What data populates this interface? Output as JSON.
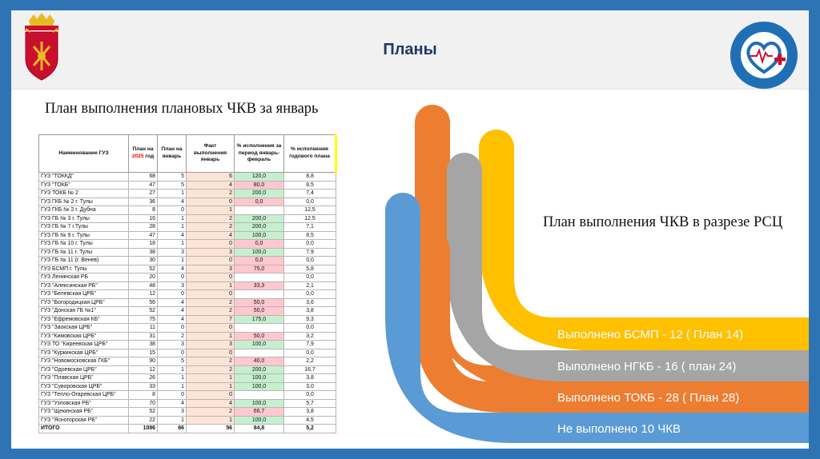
{
  "header": {
    "title": "Планы"
  },
  "left": {
    "title": "План выполнения плановых ЧКВ за январь",
    "table": {
      "headers": {
        "name": "Наименование ГУЗ",
        "plan_year_a": "План на",
        "plan_year_b": "2025",
        "plan_year_c": "год",
        "plan_jan": "План на январь",
        "fact_jan": "Факт выполнения январь",
        "pct_period": "% исполнения за период январь-февраль",
        "pct_year": "% исполнения годового плана"
      },
      "rows": [
        {
          "name": "ГУЗ \"ТОККД\"",
          "plan_year": "68",
          "plan_jan": "5",
          "fact": "6",
          "pct_period": "120,0",
          "pct_year": "8,8",
          "hl": "green"
        },
        {
          "name": "ГУЗ \"ТОКБ\"",
          "plan_year": "47",
          "plan_jan": "5",
          "fact": "4",
          "pct_period": "80,0",
          "pct_year": "8,5",
          "hl": "pink"
        },
        {
          "name": "ГУЗ ТОКБ № 2",
          "plan_year": "27",
          "plan_jan": "1",
          "fact": "2",
          "pct_period": "200,0",
          "pct_year": "7,4",
          "hl": "green"
        },
        {
          "name": "ГУЗ ГКБ № 2 г. Тулы",
          "plan_year": "36",
          "plan_jan": "4",
          "fact": "0",
          "pct_period": "0,0",
          "pct_year": "0,0",
          "hl": "pink"
        },
        {
          "name": "ГУЗ ГКБ № 2 г. Дубна",
          "plan_year": "8",
          "plan_jan": "0",
          "fact": "1",
          "pct_period": "",
          "pct_year": "12,5",
          "hl": ""
        },
        {
          "name": "ГУЗ ГБ № 3 г. Тулы",
          "plan_year": "16",
          "plan_jan": "1",
          "fact": "2",
          "pct_period": "200,0",
          "pct_year": "12,5",
          "hl": "green"
        },
        {
          "name": "ГУЗ ГБ № 7 г.Тулы",
          "plan_year": "28",
          "plan_jan": "1",
          "fact": "2",
          "pct_period": "200,0",
          "pct_year": "7,1",
          "hl": "green"
        },
        {
          "name": "ГУЗ ГБ № 9 г. Тулы",
          "plan_year": "47",
          "plan_jan": "4",
          "fact": "4",
          "pct_period": "100,0",
          "pct_year": "8,5",
          "hl": "green"
        },
        {
          "name": "ГУЗ ГБ № 10 г. Тулы",
          "plan_year": "18",
          "plan_jan": "1",
          "fact": "0",
          "pct_period": "0,0",
          "pct_year": "0,0",
          "hl": "pink"
        },
        {
          "name": "ГУЗ ГБ № 11 г. Тулы",
          "plan_year": "38",
          "plan_jan": "3",
          "fact": "3",
          "pct_period": "100,0",
          "pct_year": "7,9",
          "hl": "green"
        },
        {
          "name": "ГУЗ ГБ № 11 (г. Венев)",
          "plan_year": "30",
          "plan_jan": "1",
          "fact": "0",
          "pct_period": "0,0",
          "pct_year": "0,0",
          "hl": "pink"
        },
        {
          "name": "ГУЗ БСМП г. Тулы",
          "plan_year": "52",
          "plan_jan": "4",
          "fact": "3",
          "pct_period": "75,0",
          "pct_year": "5,8",
          "hl": "pink"
        },
        {
          "name": "ГУЗ Ленинская РБ",
          "plan_year": "20",
          "plan_jan": "0",
          "fact": "0",
          "pct_period": "",
          "pct_year": "0,0",
          "hl": ""
        },
        {
          "name": "ГУЗ \"Алексинская РБ\"",
          "plan_year": "48",
          "plan_jan": "3",
          "fact": "1",
          "pct_period": "33,3",
          "pct_year": "2,1",
          "hl": "pink"
        },
        {
          "name": "ГУЗ \"Белевская ЦРБ\"",
          "plan_year": "12",
          "plan_jan": "0",
          "fact": "0",
          "pct_period": "",
          "pct_year": "0,0",
          "hl": ""
        },
        {
          "name": "ГУЗ \"Богородицкая ЦРБ\"",
          "plan_year": "56",
          "plan_jan": "4",
          "fact": "2",
          "pct_period": "50,0",
          "pct_year": "3,6",
          "hl": "pink"
        },
        {
          "name": "ГУЗ \"Донская ГБ №1\"",
          "plan_year": "52",
          "plan_jan": "4",
          "fact": "2",
          "pct_period": "50,0",
          "pct_year": "3,8",
          "hl": "pink"
        },
        {
          "name": "ГУЗ \"Ефремовская КБ\"",
          "plan_year": "75",
          "plan_jan": "4",
          "fact": "7",
          "pct_period": "175,0",
          "pct_year": "9,3",
          "hl": "green"
        },
        {
          "name": "ГУЗ \"Заокская ЦРБ\"",
          "plan_year": "11",
          "plan_jan": "0",
          "fact": "0",
          "pct_period": "",
          "pct_year": "0,0",
          "hl": ""
        },
        {
          "name": "ГУЗ \"Кимовская ЦРБ\"",
          "plan_year": "31",
          "plan_jan": "2",
          "fact": "1",
          "pct_period": "50,0",
          "pct_year": "3,2",
          "hl": "pink"
        },
        {
          "name": "ГУЗ ТО \"Киреевская ЦРБ\"",
          "plan_year": "38",
          "plan_jan": "3",
          "fact": "3",
          "pct_period": "100,0",
          "pct_year": "7,9",
          "hl": "green"
        },
        {
          "name": "ГУЗ \"Куркинская ЦРБ\"",
          "plan_year": "15",
          "plan_jan": "0",
          "fact": "0",
          "pct_period": "",
          "pct_year": "0,0",
          "hl": ""
        },
        {
          "name": "ГУЗ \"Новомосковская ГКБ\"",
          "plan_year": "90",
          "plan_jan": "5",
          "fact": "2",
          "pct_period": "40,0",
          "pct_year": "2,2",
          "hl": "pink"
        },
        {
          "name": "ГУЗ \"Одоевская ЦРБ\"",
          "plan_year": "12",
          "plan_jan": "1",
          "fact": "2",
          "pct_period": "200,0",
          "pct_year": "16,7",
          "hl": "green"
        },
        {
          "name": "ГУЗ \"Плавская ЦРБ\"",
          "plan_year": "26",
          "plan_jan": "1",
          "fact": "1",
          "pct_period": "100,0",
          "pct_year": "3,8",
          "hl": "green"
        },
        {
          "name": "ГУЗ \"Суворовская ЦРБ\"",
          "plan_year": "33",
          "plan_jan": "1",
          "fact": "1",
          "pct_period": "100,0",
          "pct_year": "3,0",
          "hl": "green"
        },
        {
          "name": "ГУЗ \"Тепло-Огаревская ЦРБ\"",
          "plan_year": "8",
          "plan_jan": "0",
          "fact": "0",
          "pct_period": "",
          "pct_year": "0,0",
          "hl": ""
        },
        {
          "name": "ГУЗ \"Узловская РБ\"",
          "plan_year": "70",
          "plan_jan": "4",
          "fact": "4",
          "pct_period": "100,0",
          "pct_year": "5,7",
          "hl": "green"
        },
        {
          "name": "ГУЗ \"Щекинская РБ\"",
          "plan_year": "52",
          "plan_jan": "3",
          "fact": "2",
          "pct_period": "66,7",
          "pct_year": "3,8",
          "hl": "pink"
        },
        {
          "name": "ГУЗ \"Ясногорская РБ\"",
          "plan_year": "22",
          "plan_jan": "1",
          "fact": "1",
          "pct_period": "100,0",
          "pct_year": "4,5",
          "hl": "green"
        }
      ],
      "total": {
        "name": "ИТОГО",
        "plan_year": "1086",
        "plan_jan": "66",
        "fact": "56",
        "pct_period": "84,8",
        "pct_year": "5,2"
      }
    }
  },
  "right": {
    "title": "План выполнения ЧКВ в разрезе РСЦ",
    "bands": [
      {
        "label": "Выполнено БСМП - 12 ( План 14)",
        "color": "#ffc000"
      },
      {
        "label": "Выполнено НГКБ - 16 ( план 24)",
        "color": "#a5a5a5"
      },
      {
        "label": "Выполнено ТОКБ - 28 ( План 28)",
        "color": "#ed7d31"
      },
      {
        "label": "Не выполнено 10 ЧКВ",
        "color": "#5b9bd5"
      }
    ]
  },
  "colors": {
    "frame": "#2e74b5",
    "title": "#1f3864",
    "green_cell": "#c6efce",
    "pink_cell": "#ffc7ce",
    "fact_cell": "#fce4d6"
  },
  "icons": {
    "coat_of_arms": "tula-coat-of-arms-icon",
    "clinic": "heart-cross-clinic-logo-icon"
  }
}
